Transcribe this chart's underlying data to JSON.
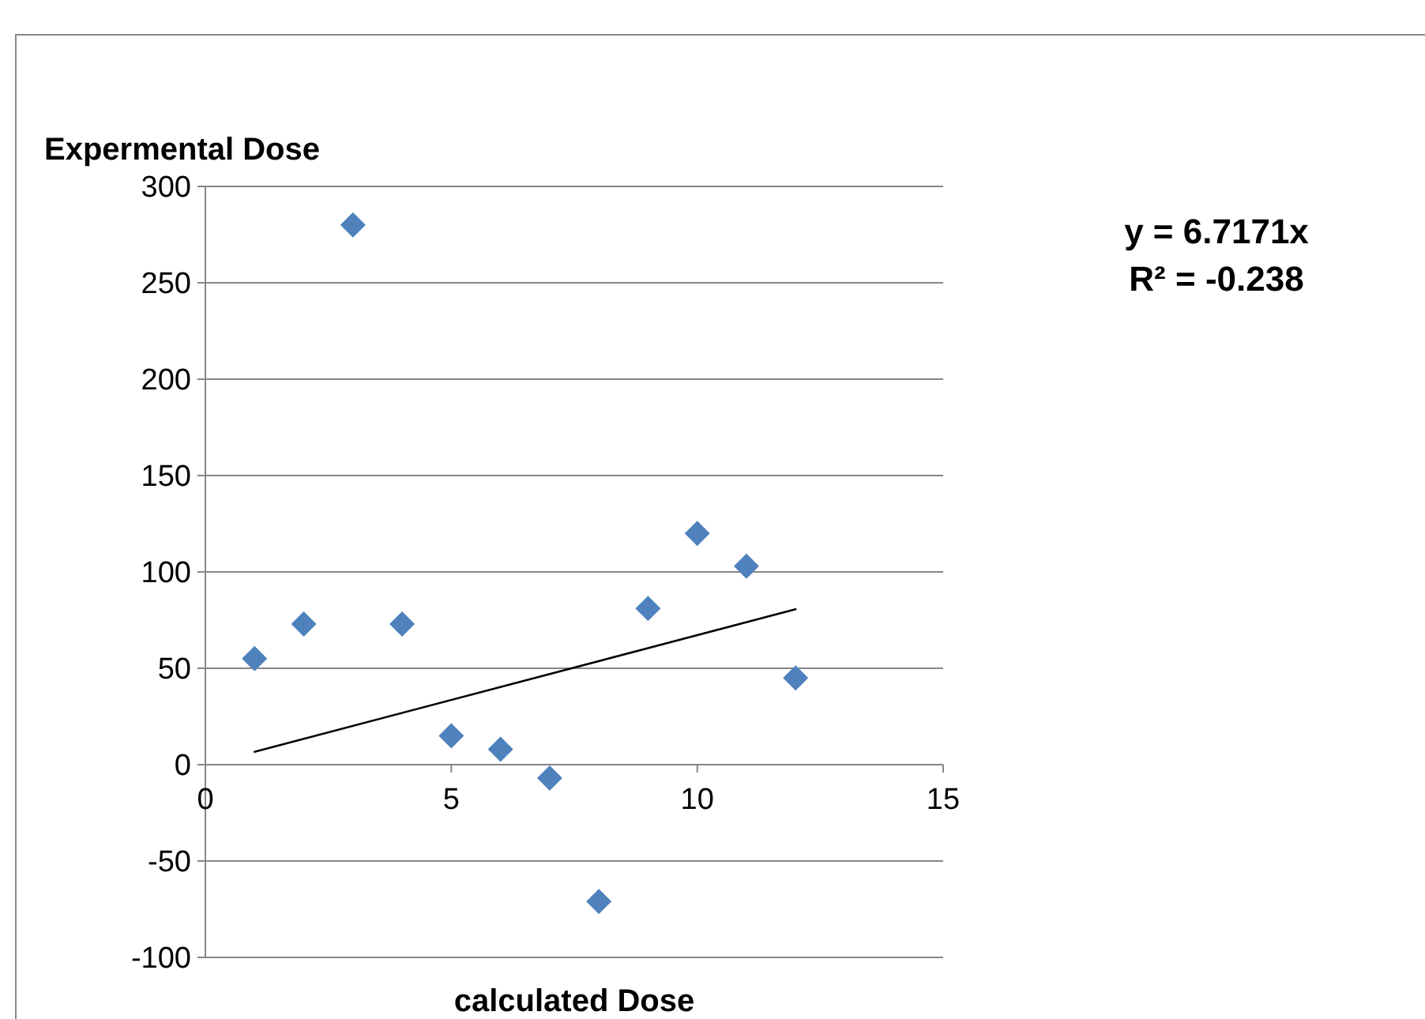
{
  "chart_data": {
    "type": "scatter",
    "xlabel": "calculated Dose",
    "ylabel": "Expermental Dose",
    "annotations": [
      "y = 6.7171x",
      "R² = -0.238"
    ],
    "xlim": [
      0,
      15
    ],
    "xticks": [
      0,
      5,
      10,
      15
    ],
    "ylim": [
      -100,
      300
    ],
    "yticks": [
      -100,
      -50,
      0,
      50,
      100,
      150,
      200,
      250,
      300
    ],
    "grid": "y",
    "series": [
      {
        "color": "#4f81bd",
        "x": [
          1,
          2,
          3,
          4,
          5,
          6,
          7,
          8,
          9,
          10,
          11,
          12
        ],
        "values": [
          55,
          73,
          280,
          73,
          15,
          8,
          -7,
          -71,
          81,
          120,
          103,
          45
        ],
        "marker": "diamond"
      },
      {
        "type": "line",
        "color": "#000000",
        "line_style": "solid",
        "x": [
          1,
          12
        ],
        "values": [
          6.7,
          80.6
        ]
      }
    ]
  }
}
